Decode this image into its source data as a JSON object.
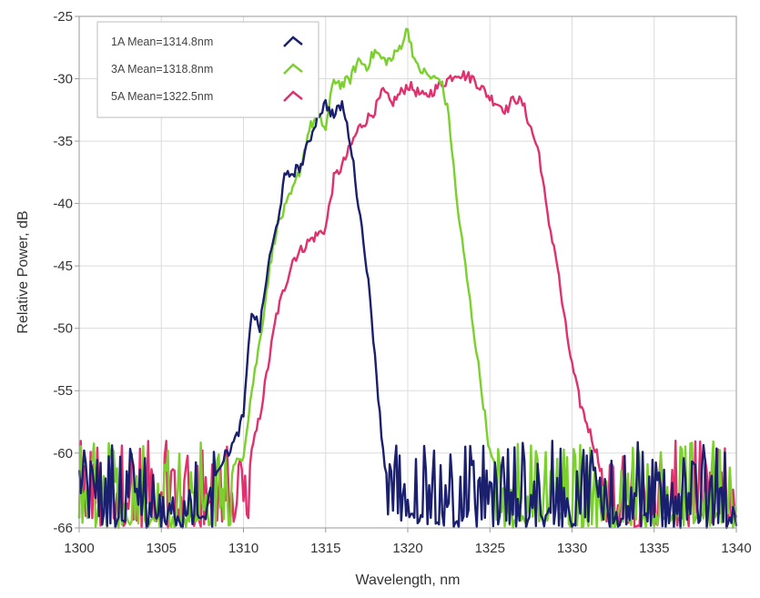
{
  "chart_data": {
    "type": "line",
    "title": "",
    "xlabel": "Wavelength, nm",
    "ylabel": "Relative Power, dB",
    "xlim": [
      1300,
      1340
    ],
    "ylim": [
      -66,
      -25
    ],
    "xticks": [
      1300,
      1305,
      1310,
      1315,
      1320,
      1325,
      1330,
      1335,
      1340
    ],
    "xtick_labels": [
      "1300",
      "1305",
      "1310",
      "1315",
      "1320",
      "1325",
      "1330",
      "1335",
      "1340"
    ],
    "yticks": [
      -25,
      -30,
      -35,
      -40,
      -45,
      -50,
      -55,
      -60,
      -66
    ],
    "ytick_labels": [
      "-25",
      "-30",
      "-35",
      "-40",
      "-45",
      "-50",
      "-55",
      "-60",
      "-66"
    ],
    "grid": true,
    "legend_position": "top-left",
    "noise_floor": [
      -66,
      -60.5
    ],
    "series": [
      {
        "name": "1A Mean=1314.8nm",
        "color": "#1a1f6e",
        "x": [
          1300,
          1308,
          1309,
          1309.5,
          1310,
          1310.5,
          1311,
          1311.5,
          1312,
          1312.5,
          1313,
          1313.5,
          1314,
          1314.5,
          1315,
          1315.5,
          1316,
          1316.5,
          1317,
          1317.5,
          1318,
          1318.3,
          1318.6,
          1319,
          1319.5,
          1320,
          1340
        ],
        "y": [
          -62.5,
          -62,
          -60,
          -59,
          -57,
          -48.5,
          -50,
          -45,
          -42,
          -38,
          -37.5,
          -37,
          -35,
          -33,
          -32,
          -33,
          -32,
          -35,
          -40,
          -45,
          -52,
          -57,
          -61,
          -63,
          -65,
          -63,
          -63
        ]
      },
      {
        "name": "3A Mean=1318.8nm",
        "color": "#7ad12c",
        "x": [
          1300,
          1308,
          1309,
          1310,
          1310.5,
          1311,
          1311.5,
          1312,
          1312.5,
          1313,
          1313.5,
          1314,
          1314.5,
          1315,
          1315.5,
          1316,
          1316.5,
          1317,
          1317.5,
          1318,
          1318.5,
          1319,
          1319.5,
          1320,
          1320.5,
          1321,
          1321.5,
          1322,
          1322.5,
          1323,
          1323.5,
          1324,
          1324.5,
          1325,
          1325.5,
          1326,
          1326.5,
          1340
        ],
        "y": [
          -62.5,
          -62.3,
          -62,
          -60,
          -55,
          -51,
          -46,
          -42,
          -40.5,
          -39,
          -37,
          -34,
          -33,
          -34,
          -30,
          -30.5,
          -30,
          -28.5,
          -29,
          -27.8,
          -28.5,
          -28.5,
          -27.5,
          -26,
          -29,
          -29.5,
          -30,
          -30,
          -33,
          -40,
          -45,
          -50,
          -55,
          -60,
          -62,
          -63,
          -63,
          -63
        ]
      },
      {
        "name": "5A Mean=1322.5nm",
        "color": "#e0306e",
        "x": [
          1300,
          1309,
          1310,
          1310.5,
          1311,
          1312,
          1313,
          1314,
          1315,
          1315.5,
          1316,
          1317,
          1318,
          1318.5,
          1319,
          1320,
          1321,
          1322,
          1323,
          1324,
          1325,
          1326,
          1326.5,
          1327,
          1327.5,
          1328,
          1328.5,
          1329,
          1329.5,
          1330,
          1330.5,
          1331,
          1331.5,
          1332,
          1340
        ],
        "y": [
          -62.5,
          -62,
          -64,
          -60,
          -57,
          -49,
          -44.5,
          -43,
          -42,
          -38,
          -37,
          -34,
          -32.5,
          -31,
          -32,
          -30.5,
          -31.5,
          -30.5,
          -29.5,
          -30,
          -31.5,
          -32.5,
          -31.5,
          -32,
          -34,
          -36,
          -41,
          -44,
          -49,
          -53,
          -56,
          -58,
          -60,
          -62.5,
          -63
        ]
      }
    ]
  },
  "legend": {
    "entries": [
      "1A Mean=1314.8nm",
      "3A Mean=1318.8nm",
      "5A Mean=1322.5nm"
    ]
  }
}
